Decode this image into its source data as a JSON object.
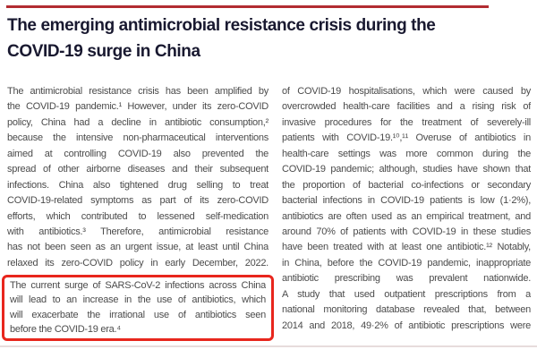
{
  "page": {
    "title_color": "#191930",
    "body_text_color": "#4b4b4b",
    "highlight_border_color": "#e8261d",
    "top_rule_color": "#b22c31",
    "bottom_rule_color": "#e7dcdc"
  },
  "article": {
    "title_line1": "The emerging antimicrobial resistance crisis during the",
    "title_line2": "COVID-19 surge in China",
    "left_column": {
      "lines": [
        "The antimicrobial resistance crisis has been amplified by",
        "the COVID-19 pandemic.¹ However, under its zero-COVID",
        "policy, China had a decline in antibiotic consumption,²",
        "because the intensive non-pharmaceutical interventions",
        "aimed at controlling COVID-19 also prevented the",
        "spread of other airborne diseases and their subsequent",
        "infections. China also tightened drug selling to treat",
        "COVID-19-related symptoms as part of its zero-COVID",
        "efforts, which contributed to lessened self-medication",
        "with antibiotics.³ Therefore, antimicrobial resistance",
        "has not been seen as an urgent issue, at least until China",
        "relaxed its zero-COVID policy in early December, 2022."
      ],
      "highlight_box": {
        "lines": [
          "The current surge of SARS-CoV-2 infections across China",
          "will lead to an increase in the use of antibiotics, which",
          "will exacerbate the irrational use of antibiotics seen",
          "before the COVID-19 era.⁴"
        ]
      }
    },
    "right_column": {
      "lines": [
        "of COVID-19 hospitalisations, which were caused by",
        "overcrowded health-care facilities and a rising risk of",
        "invasive procedures for the treatment of severely-ill",
        "patients with COVID-19.¹⁰,¹¹ Overuse of antibiotics in",
        "health-care settings was more common during the",
        "COVID-19 pandemic; although, studies have shown that",
        "the proportion of bacterial co-infections or secondary",
        "bacterial infections in COVID-19 patients is low (1·2%),",
        "antibiotics are often used as an empirical treatment, and",
        "around 70% of patients with COVID-19 in these studies",
        "have been treated with at least one antibiotic.¹² Notably,",
        "in China, before the COVID-19 pandemic, inappropriate",
        "antibiotic prescribing was prevalent nationwide.",
        "A study that used outpatient prescriptions from a",
        "national monitoring database revealed that, between",
        "2014 and 2018, 49·2% of antibiotic prescriptions were"
      ]
    }
  }
}
